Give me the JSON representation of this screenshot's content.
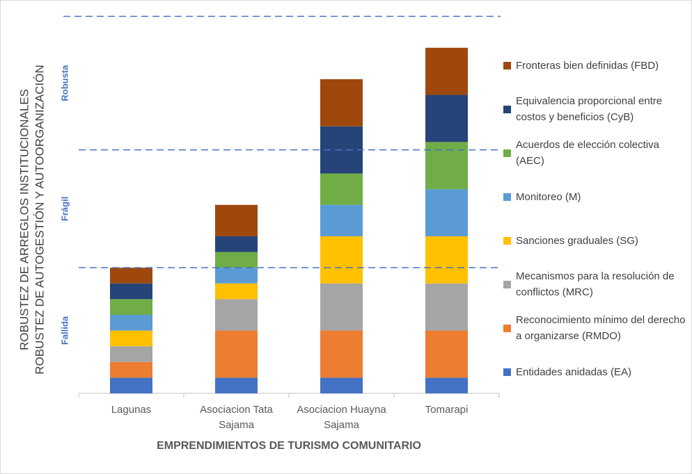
{
  "chart_data": {
    "type": "stacked_bar",
    "y_axis_title": [
      "ROBUSTEZ DE ARREGLOS INSTITUCIONALES",
      "ROBUSTEZ DE AUTOGESTIÓN Y AUTOORGANIZACIÓN"
    ],
    "x_axis_title": "EMPRENDIMIENTOS DE TURISMO COMUNITARIO",
    "categories": [
      "Lagunas",
      "Asociacion Tata Sajama",
      "Asociacion Huayna Sajama",
      "Tomarapi"
    ],
    "series": [
      {
        "name": "Entidades anidadas (EA)",
        "color": "#4472c4",
        "values": [
          1,
          1,
          1,
          1
        ]
      },
      {
        "name": "Reconocimiento mínimo del derecho a organizarse (RMDO)",
        "color": "#ed7d31",
        "values": [
          1,
          3,
          3,
          3
        ]
      },
      {
        "name": "Mecanismos para la resolución de conflictos (MRC)",
        "color": "#a5a5a5",
        "values": [
          1,
          2,
          3,
          3
        ]
      },
      {
        "name": "Sanciones graduales (SG)",
        "color": "#ffc000",
        "values": [
          1,
          1,
          3,
          3
        ]
      },
      {
        "name": "Monitoreo (M)",
        "color": "#5b9bd5",
        "values": [
          1,
          1,
          2,
          3
        ]
      },
      {
        "name": "Acuerdos de elección colectiva (AEC)",
        "color": "#70ad47",
        "values": [
          1,
          1,
          2,
          3
        ]
      },
      {
        "name": "Equivalencia proporcional entre costos y beneficios (CyB)",
        "color": "#264478",
        "values": [
          1,
          1,
          3,
          3
        ]
      },
      {
        "name": "Fronteras bien definidas (FBD)",
        "color": "#9e480e",
        "values": [
          1,
          2,
          3,
          3
        ]
      }
    ],
    "zones": [
      {
        "label": "Fallida",
        "threshold": 8
      },
      {
        "label": "Frágil",
        "threshold": 15.5
      },
      {
        "label": "Robusta",
        "threshold": 24
      }
    ],
    "zone_color": "#4472c4",
    "ylim": [
      0,
      24.2
    ],
    "legend": "right"
  }
}
